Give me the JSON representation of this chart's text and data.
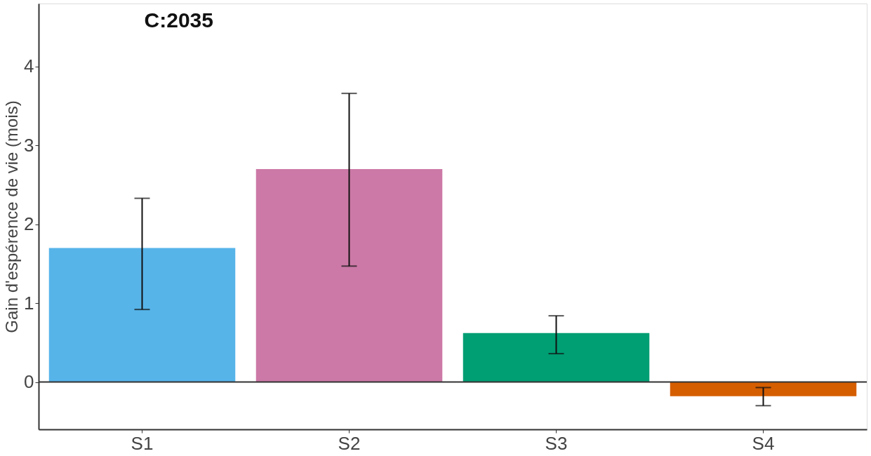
{
  "chart_data": {
    "type": "bar",
    "title": "C:2035",
    "ylabel": "Gain d'espérence de vie (mois)",
    "categories": [
      "S1",
      "S2",
      "S3",
      "S4"
    ],
    "values": [
      1.7,
      2.7,
      0.62,
      -0.18
    ],
    "colors": [
      "#56b4e9",
      "#cc79a7",
      "#009e73",
      "#d55e00"
    ],
    "errors": [
      [
        0.92,
        2.33
      ],
      [
        1.47,
        3.66
      ],
      [
        0.36,
        0.84
      ],
      [
        -0.3,
        -0.07
      ]
    ],
    "ylim": [
      -0.6,
      4.8
    ],
    "yticks": [
      0,
      1,
      2,
      3,
      4
    ],
    "grid": false,
    "ref_lines": [
      {
        "axis": "y",
        "value": 0,
        "color": "#333333"
      }
    ]
  }
}
